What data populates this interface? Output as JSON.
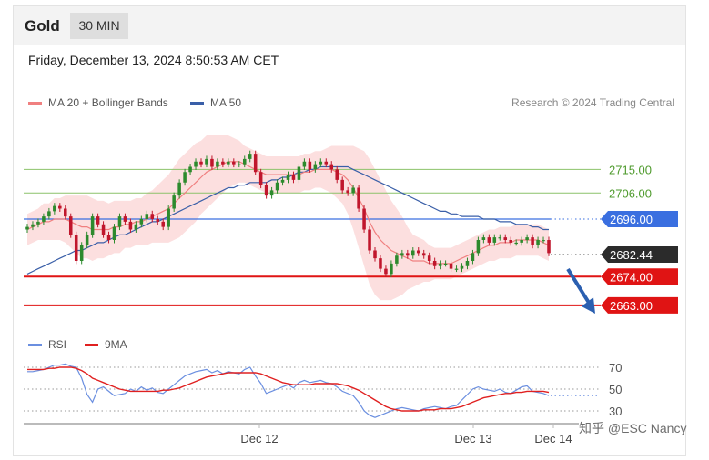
{
  "header": {
    "symbol": "Gold",
    "timeframe": "30 MIN"
  },
  "timestamp": "Friday, December 13, 2024 8:50:53 AM CET",
  "legend": {
    "ma20": {
      "label": "MA 20 + Bollinger Bands",
      "color": "#f08080"
    },
    "ma50": {
      "label": "MA 50",
      "color": "#3a5fa8"
    }
  },
  "credit": "Research © 2024 Trading Central",
  "rsi_legend": {
    "rsi": {
      "label": "RSI",
      "color": "#6b8fe0"
    },
    "ma9": {
      "label": "9MA",
      "color": "#e02020"
    }
  },
  "watermark": "知乎 @ESC Nancy",
  "colors": {
    "resistance": "#3a6fe0",
    "support": "#e01414",
    "target": "#8cc26a",
    "bull": "#2d8a2d",
    "bear": "#c0162c",
    "arrow": "#2b5fb0"
  },
  "chart_data": [
    {
      "type": "line",
      "title": "",
      "y_range": [
        2656,
        2736
      ],
      "x_tick_labels": [
        "Dec 12",
        "Dec 13",
        "Dec 14"
      ],
      "levels": [
        {
          "value": 2715.0,
          "label": "2715.00",
          "kind": "target"
        },
        {
          "value": 2706.0,
          "label": "2706.00",
          "kind": "target"
        },
        {
          "value": 2696.0,
          "label": "2696.00",
          "kind": "resistance"
        },
        {
          "value": 2682.44,
          "label": "2682.44",
          "kind": "last_price"
        },
        {
          "value": 2674.0,
          "label": "2674.00",
          "kind": "support"
        },
        {
          "value": 2663.0,
          "label": "2663.00",
          "kind": "support_target"
        }
      ],
      "close": [
        2693,
        2694,
        2695,
        2697,
        2699,
        2701,
        2700,
        2697,
        2690,
        2680,
        2686,
        2690,
        2697,
        2694,
        2690,
        2688,
        2693,
        2697,
        2695,
        2692,
        2694,
        2696,
        2698,
        2696,
        2695,
        2693,
        2700,
        2705,
        2710,
        2714,
        2716,
        2718,
        2717,
        2719,
        2716,
        2718,
        2717,
        2718,
        2717,
        2717,
        2719,
        2721,
        2714,
        2709,
        2705,
        2707,
        2710,
        2711,
        2713,
        2711,
        2716,
        2718,
        2715,
        2717,
        2718,
        2717,
        2715,
        2711,
        2707,
        2706,
        2708,
        2700,
        2692,
        2684,
        2681,
        2677,
        2675,
        2679,
        2682,
        2683,
        2682,
        2684,
        2683,
        2682,
        2680,
        2678,
        2679,
        2679,
        2677,
        2677,
        2678,
        2680,
        2683,
        2688,
        2689,
        2687,
        2689,
        2689,
        2688,
        2687,
        2687,
        2688,
        2689,
        2686,
        2688,
        2688,
        2683
      ],
      "ma20": [
        2692,
        2693,
        2694,
        2695,
        2695,
        2696,
        2696,
        2696,
        2695,
        2694,
        2693,
        2693,
        2692,
        2692,
        2692,
        2692,
        2693,
        2693,
        2694,
        2694,
        2695,
        2695,
        2696,
        2697,
        2698,
        2699,
        2700,
        2702,
        2704,
        2706,
        2708,
        2710,
        2712,
        2714,
        2715,
        2716,
        2717,
        2718,
        2718,
        2718,
        2717,
        2716,
        2715,
        2714,
        2713,
        2713,
        2713,
        2713,
        2713,
        2713,
        2713,
        2714,
        2714,
        2715,
        2715,
        2715,
        2715,
        2714,
        2713,
        2711,
        2708,
        2704,
        2700,
        2695,
        2691,
        2688,
        2686,
        2684,
        2683,
        2682,
        2681,
        2680,
        2680,
        2680,
        2679,
        2679,
        2679,
        2679,
        2679,
        2680,
        2681,
        2682,
        2683,
        2684,
        2685,
        2686,
        2686,
        2687,
        2687,
        2687,
        2688,
        2688,
        2688,
        2688,
        2688,
        2687,
        2686
      ],
      "ma50": [
        2675,
        2676,
        2677,
        2678,
        2679,
        2680,
        2681,
        2682,
        2683,
        2684,
        2684,
        2685,
        2686,
        2687,
        2687,
        2688,
        2689,
        2690,
        2690,
        2691,
        2692,
        2693,
        2694,
        2695,
        2695,
        2696,
        2697,
        2698,
        2699,
        2700,
        2701,
        2702,
        2703,
        2704,
        2705,
        2706,
        2707,
        2708,
        2708,
        2709,
        2709,
        2710,
        2710,
        2710,
        2710,
        2711,
        2711,
        2712,
        2712,
        2713,
        2714,
        2714,
        2715,
        2715,
        2716,
        2716,
        2716,
        2716,
        2716,
        2716,
        2715,
        2714,
        2713,
        2712,
        2711,
        2710,
        2709,
        2708,
        2707,
        2706,
        2705,
        2704,
        2703,
        2702,
        2701,
        2700,
        2699,
        2699,
        2698,
        2698,
        2697,
        2697,
        2697,
        2697,
        2696,
        2696,
        2696,
        2695,
        2695,
        2695,
        2694,
        2694,
        2694,
        2693,
        2693,
        2692,
        2692
      ],
      "bollinger_width": [
        6,
        6,
        6,
        7,
        7,
        8,
        8,
        9,
        10,
        11,
        12,
        12,
        12,
        11,
        11,
        10,
        10,
        10,
        9,
        9,
        9,
        9,
        10,
        10,
        11,
        12,
        13,
        14,
        15,
        15,
        15,
        15,
        14,
        14,
        13,
        12,
        11,
        10,
        9,
        8,
        7,
        7,
        7,
        7,
        7,
        7,
        7,
        7,
        7,
        7,
        7,
        7,
        7,
        7,
        7,
        8,
        9,
        10,
        11,
        13,
        16,
        19,
        22,
        24,
        24,
        23,
        21,
        19,
        17,
        15,
        12,
        10,
        9,
        8,
        7,
        6,
        6,
        6,
        6,
        6,
        6,
        6,
        6,
        6,
        6,
        6,
        6,
        6,
        6,
        6,
        6,
        6,
        6,
        6,
        6,
        6,
        6
      ]
    },
    {
      "type": "line",
      "title": "RSI",
      "y_range": [
        20,
        80
      ],
      "y_ticks": [
        70,
        50,
        30
      ],
      "rsi": [
        66,
        66,
        67,
        68,
        70,
        72,
        72,
        73,
        71,
        70,
        60,
        45,
        38,
        50,
        52,
        48,
        44,
        45,
        46,
        50,
        48,
        52,
        49,
        51,
        47,
        46,
        50,
        54,
        58,
        62,
        64,
        66,
        67,
        68,
        65,
        67,
        64,
        66,
        65,
        64,
        68,
        70,
        62,
        55,
        46,
        48,
        50,
        52,
        54,
        51,
        56,
        58,
        56,
        57,
        58,
        56,
        55,
        52,
        48,
        46,
        44,
        38,
        30,
        26,
        24,
        26,
        28,
        30,
        32,
        33,
        32,
        31,
        30,
        32,
        33,
        34,
        33,
        32,
        34,
        35,
        40,
        45,
        50,
        52,
        50,
        49,
        48,
        50,
        47,
        46,
        49,
        52,
        53,
        48,
        47,
        46,
        44
      ],
      "ma9": [
        68,
        68,
        68,
        68,
        69,
        69,
        70,
        70,
        70,
        69,
        67,
        64,
        60,
        58,
        56,
        54,
        52,
        50,
        49,
        48,
        48,
        48,
        48,
        48,
        48,
        49,
        49,
        50,
        51,
        53,
        55,
        57,
        59,
        61,
        62,
        63,
        64,
        65,
        65,
        65,
        65,
        65,
        65,
        64,
        62,
        60,
        58,
        56,
        55,
        54,
        54,
        54,
        54,
        55,
        55,
        55,
        55,
        55,
        54,
        53,
        51,
        49,
        46,
        43,
        40,
        37,
        34,
        32,
        31,
        30,
        30,
        30,
        30,
        31,
        31,
        31,
        32,
        32,
        32,
        33,
        34,
        36,
        38,
        40,
        42,
        43,
        44,
        45,
        46,
        46,
        47,
        47,
        48,
        48,
        48,
        48,
        47
      ]
    }
  ]
}
